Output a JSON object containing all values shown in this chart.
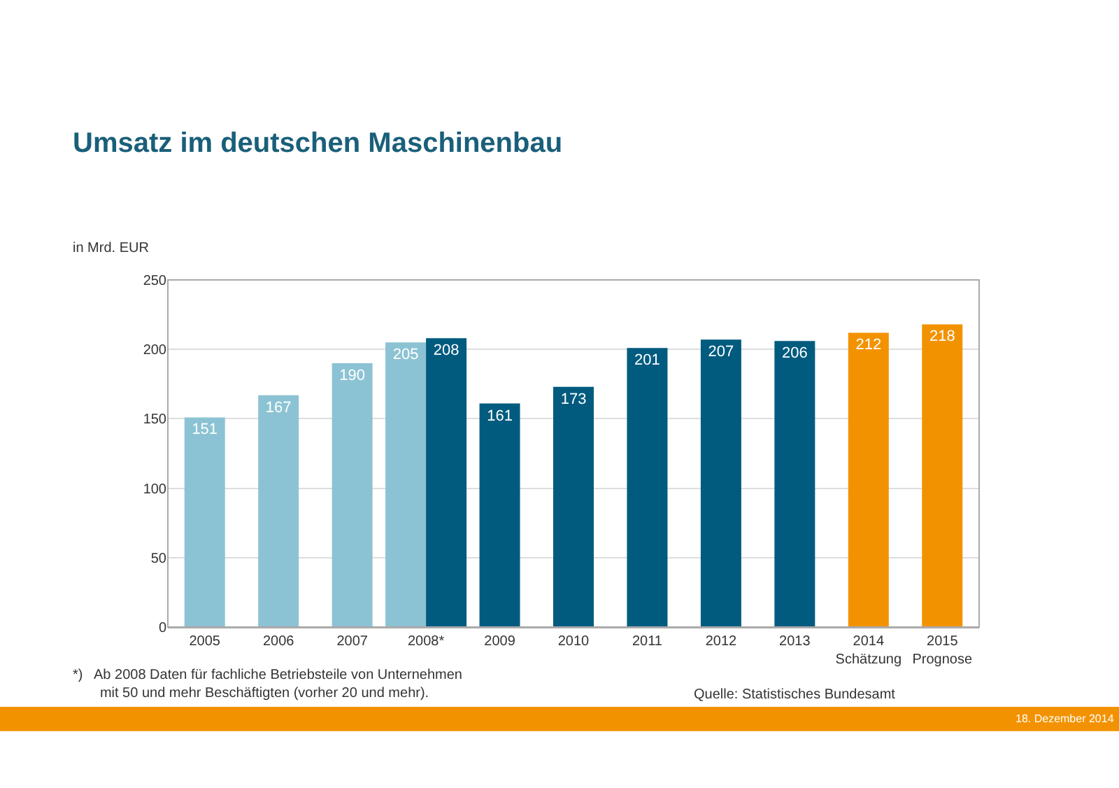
{
  "chart_data": {
    "type": "bar",
    "title": "Umsatz im deutschen Maschinenbau",
    "ylabel": "in Mrd. EUR",
    "categories": [
      "2005",
      "2006",
      "2007",
      "2008*",
      "2009",
      "2010",
      "2011",
      "2012",
      "2013",
      "2014\nSchätzung",
      "2015\nPrognose"
    ],
    "series": [
      {
        "color": "#8cc3d4",
        "values": [
          151,
          167,
          190,
          205,
          null,
          null,
          null,
          null,
          null,
          null,
          null
        ]
      },
      {
        "color": "#005b7f",
        "values": [
          null,
          null,
          null,
          208,
          161,
          173,
          201,
          207,
          206,
          null,
          null
        ]
      },
      {
        "color": "#f39200",
        "values": [
          null,
          null,
          null,
          null,
          null,
          null,
          null,
          null,
          null,
          212,
          218
        ]
      }
    ],
    "ylim": [
      0,
      250
    ],
    "yticks": [
      0,
      50,
      100,
      150,
      200,
      250
    ],
    "grid": "y",
    "data_labels": true,
    "annotations": [
      "*)   Ab 2008 Daten für fachliche Betriebsteile von Unternehmen\n       mit 50 und mehr Beschäftigten (vorher 20 und mehr).",
      "Quelle: Statistisches Bundesamt",
      "18. Dezember 2014"
    ]
  }
}
